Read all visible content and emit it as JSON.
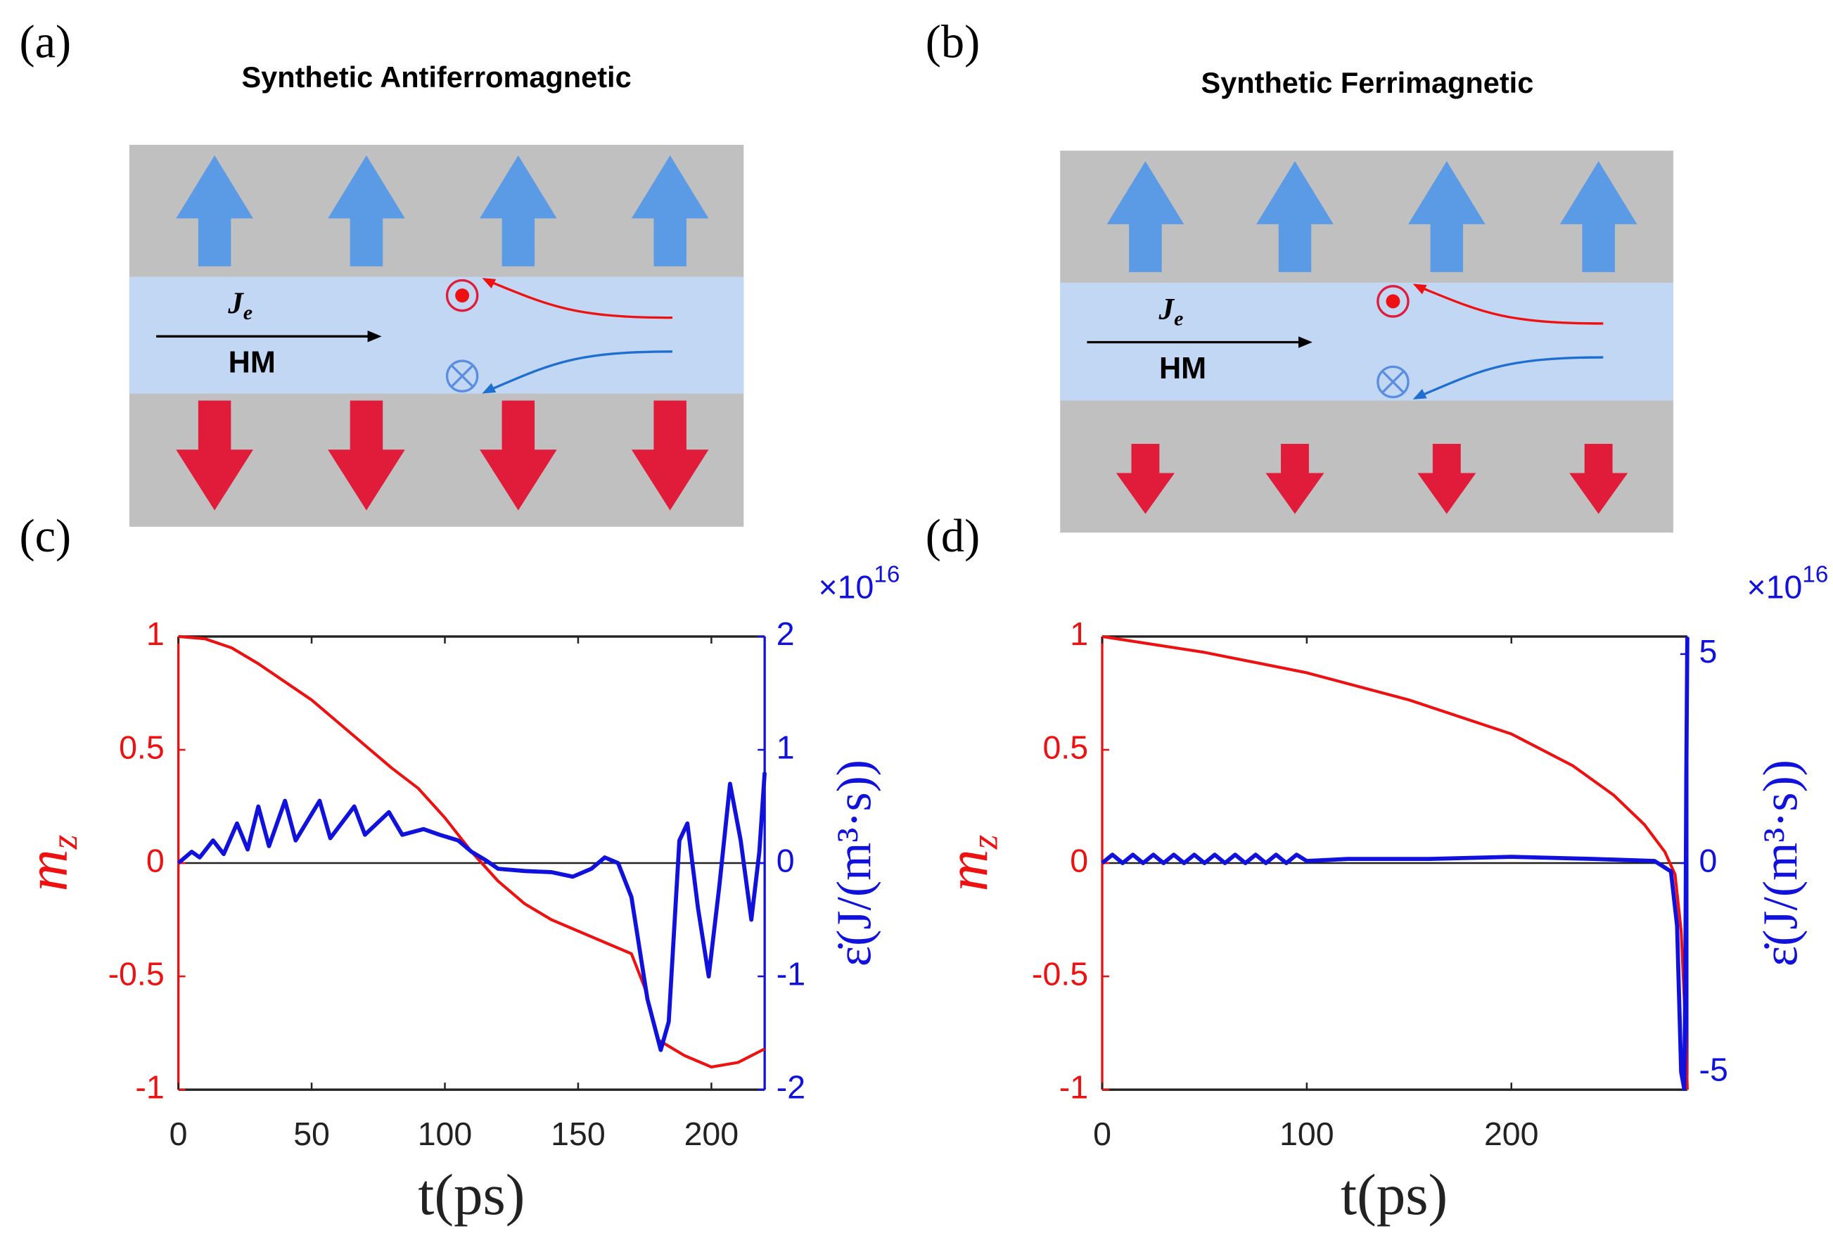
{
  "diagrams": [
    {
      "label": "(a)",
      "title": "Synthetic Antiferromagnetic",
      "current": {
        "base": "J",
        "sub": "e"
      },
      "layer": "HM"
    },
    {
      "label": "(b)",
      "title": "Synthetic Ferrimagnetic",
      "current": {
        "base": "J",
        "sub": "e"
      },
      "layer": "HM"
    }
  ],
  "chart_data": [
    {
      "type": "line",
      "label": "(c)",
      "xlabel": "t(ps)",
      "ylabel": {
        "base": "m",
        "sub": "z"
      },
      "y2label": "ε̇(J/(m³·s))",
      "y2exponent": {
        "base": "×10",
        "sup": "16"
      },
      "xlim": [
        0,
        220
      ],
      "xticks": [
        0,
        50,
        100,
        150,
        200
      ],
      "ylim": [
        -1,
        1
      ],
      "yticks": [
        -1,
        -0.5,
        0,
        0.5,
        1
      ],
      "y2lim": [
        -2,
        2
      ],
      "y2ticks": [
        -2,
        -1,
        0,
        1,
        2
      ],
      "series": [
        {
          "color": "#ee1111",
          "axis": "y",
          "x": [
            0,
            10,
            20,
            30,
            40,
            50,
            60,
            70,
            80,
            90,
            100,
            110,
            120,
            130,
            140,
            150,
            160,
            170,
            175,
            180,
            190,
            200,
            210,
            220
          ],
          "values": [
            1,
            0.99,
            0.95,
            0.88,
            0.8,
            0.72,
            0.62,
            0.52,
            0.42,
            0.33,
            0.2,
            0.05,
            -0.08,
            -0.18,
            -0.25,
            -0.3,
            -0.35,
            -0.4,
            -0.55,
            -0.78,
            -0.85,
            -0.9,
            -0.88,
            -0.82
          ]
        },
        {
          "color": "#1111dd",
          "axis": "y2",
          "x": [
            0,
            5,
            8,
            13,
            17,
            22,
            26,
            30,
            34,
            40,
            44,
            53,
            57,
            66,
            70,
            79,
            84,
            92,
            98,
            105,
            110,
            115,
            120,
            130,
            140,
            148,
            155,
            160,
            165,
            170,
            176,
            181,
            184,
            188,
            191,
            195,
            199,
            203,
            207,
            211,
            215,
            218,
            220
          ],
          "values": [
            0,
            0.1,
            0.05,
            0.2,
            0.08,
            0.35,
            0.12,
            0.5,
            0.15,
            0.55,
            0.2,
            0.55,
            0.22,
            0.5,
            0.25,
            0.45,
            0.25,
            0.3,
            0.25,
            0.2,
            0.1,
            0.03,
            -0.05,
            -0.07,
            -0.08,
            -0.12,
            -0.05,
            0.05,
            0,
            -0.3,
            -1.2,
            -1.65,
            -1.4,
            0.2,
            0.35,
            -0.4,
            -1.0,
            -0.2,
            0.7,
            0.2,
            -0.5,
            0.1,
            0.8
          ]
        }
      ]
    },
    {
      "type": "line",
      "label": "(d)",
      "xlabel": "t(ps)",
      "ylabel": {
        "base": "m",
        "sub": "z"
      },
      "y2label": "ε̇(J/(m³·s))",
      "y2exponent": {
        "base": "×10",
        "sup": "16"
      },
      "xlim": [
        0,
        286
      ],
      "xticks": [
        0,
        100,
        200
      ],
      "ylim": [
        -1,
        1
      ],
      "yticks": [
        -1,
        -0.5,
        0,
        0.5,
        1
      ],
      "y2lim": [
        -5.42,
        5.42
      ],
      "y2ticks": [
        -5,
        0,
        5
      ],
      "series": [
        {
          "color": "#ee1111",
          "axis": "y",
          "x": [
            0,
            50,
            100,
            150,
            200,
            230,
            250,
            265,
            275,
            280,
            283,
            285,
            286
          ],
          "values": [
            1,
            0.93,
            0.84,
            0.72,
            0.57,
            0.43,
            0.3,
            0.17,
            0.05,
            -0.05,
            -0.3,
            -0.7,
            -1
          ]
        },
        {
          "color": "#1111dd",
          "axis": "y2",
          "x": [
            0,
            5,
            10,
            15,
            20,
            25,
            30,
            35,
            40,
            45,
            50,
            55,
            60,
            65,
            70,
            75,
            80,
            85,
            90,
            95,
            100,
            120,
            160,
            200,
            240,
            270,
            278,
            281,
            283,
            284.5,
            285,
            285.5,
            286
          ],
          "values": [
            0,
            0.2,
            0,
            0.2,
            0,
            0.2,
            0,
            0.2,
            0,
            0.2,
            0,
            0.2,
            0,
            0.2,
            0,
            0.2,
            0,
            0.2,
            0,
            0.2,
            0.05,
            0.1,
            0.1,
            0.15,
            0.1,
            0.05,
            -0.2,
            -1.5,
            -5,
            -5.4,
            -3,
            2,
            5.4
          ]
        }
      ]
    }
  ]
}
